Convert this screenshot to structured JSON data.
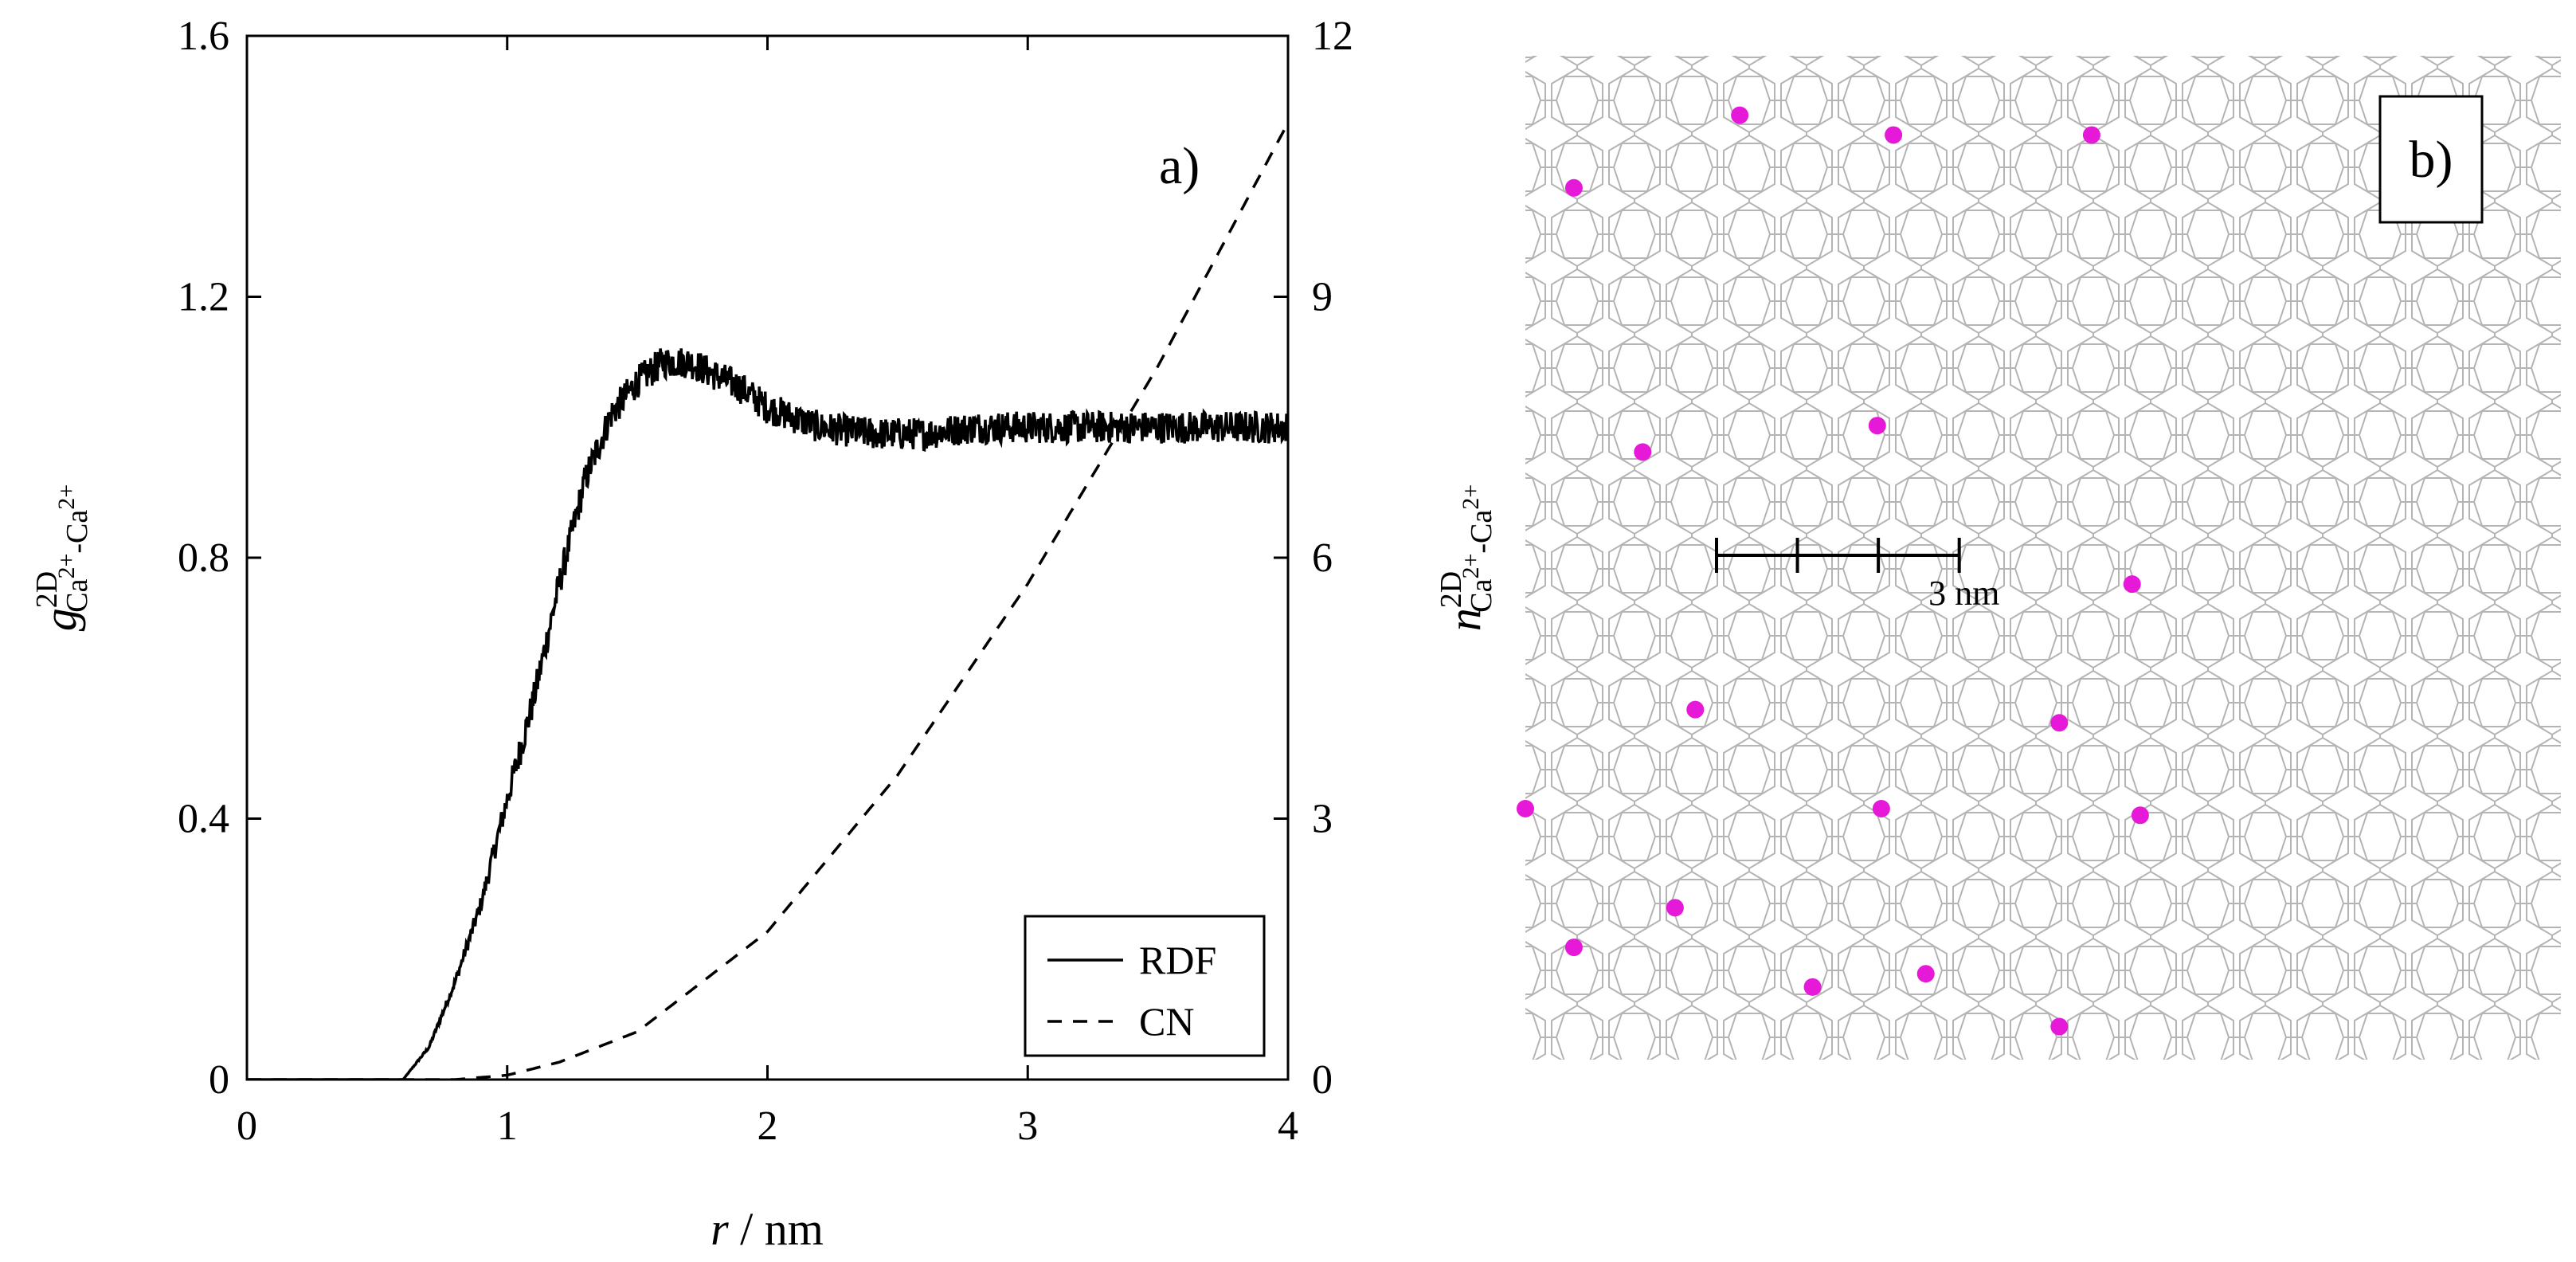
{
  "colors": {
    "ink": "#000000",
    "mesh": "#b4b4b4",
    "ion": "#e619d8",
    "background": "#ffffff"
  },
  "chart_data": [
    {
      "type": "line",
      "panel_label": "a)",
      "xlabel": {
        "italic": "r",
        "rest": " / nm"
      },
      "ylabel_left": {
        "italic": "g",
        "sup": "2D",
        "sub_parts": [
          "Ca",
          "2+",
          "-Ca",
          "2+"
        ]
      },
      "ylabel_right": {
        "italic": "n",
        "sup": "2D",
        "sub_parts": [
          "Ca",
          "2+",
          "-Ca",
          "2+"
        ]
      },
      "xlim": [
        0,
        4
      ],
      "ylim_left": [
        0,
        1.6
      ],
      "ylim_right": [
        0,
        12
      ],
      "x_ticks": [
        "0",
        "1",
        "2",
        "3",
        "4"
      ],
      "y_left_ticks": [
        "0",
        "0.4",
        "0.8",
        "1.2",
        "1.6"
      ],
      "y_right_ticks": [
        "0",
        "3",
        "6",
        "9",
        "12"
      ],
      "legend": {
        "position": "bottom-right",
        "entries": [
          "RDF",
          "CN"
        ]
      },
      "series": [
        {
          "name": "RDF",
          "axis": "left",
          "style": "solid",
          "noise_amplitude": 0.025,
          "x": [
            0,
            0.5,
            0.6,
            0.7,
            0.8,
            0.9,
            1.0,
            1.1,
            1.2,
            1.3,
            1.4,
            1.5,
            1.6,
            1.7,
            1.8,
            1.9,
            2.0,
            2.2,
            2.4,
            2.6,
            2.8,
            3.0,
            3.2,
            3.4,
            3.6,
            3.8,
            4.0
          ],
          "values": [
            0,
            0,
            0.0,
            0.05,
            0.15,
            0.27,
            0.43,
            0.58,
            0.76,
            0.92,
            1.02,
            1.07,
            1.1,
            1.1,
            1.08,
            1.06,
            1.03,
            1.0,
            0.99,
            0.99,
            1.0,
            1.0,
            1.0,
            1.0,
            1.0,
            1.0,
            1.0
          ]
        },
        {
          "name": "CN",
          "axis": "right",
          "style": "dashed",
          "x": [
            0,
            0.8,
            1.0,
            1.2,
            1.5,
            2.0,
            2.5,
            3.0,
            3.5,
            4.0
          ],
          "values": [
            0,
            0,
            0.05,
            0.2,
            0.55,
            1.7,
            3.5,
            5.7,
            8.2,
            11.0
          ]
        }
      ]
    },
    {
      "type": "scatter",
      "panel_label": "b)",
      "scale_bar_label": "3 nm",
      "scale_bar_nm": 3,
      "x_range_nm": [
        0,
        12.8
      ],
      "y_range_nm": [
        0,
        7.6
      ],
      "points_nm": [
        [
          0.6,
          6.6
        ],
        [
          2.65,
          7.15
        ],
        [
          4.55,
          7.0
        ],
        [
          7.0,
          7.0
        ],
        [
          1.45,
          4.6
        ],
        [
          4.35,
          4.8
        ],
        [
          7.5,
          3.6
        ],
        [
          2.1,
          2.65
        ],
        [
          6.6,
          2.55
        ],
        [
          0,
          1.9
        ],
        [
          4.4,
          1.9
        ],
        [
          7.6,
          1.85
        ],
        [
          1.85,
          1.15
        ],
        [
          0.6,
          0.85
        ],
        [
          4.95,
          0.65
        ],
        [
          3.55,
          0.55
        ],
        [
          6.6,
          0.25
        ]
      ]
    }
  ]
}
